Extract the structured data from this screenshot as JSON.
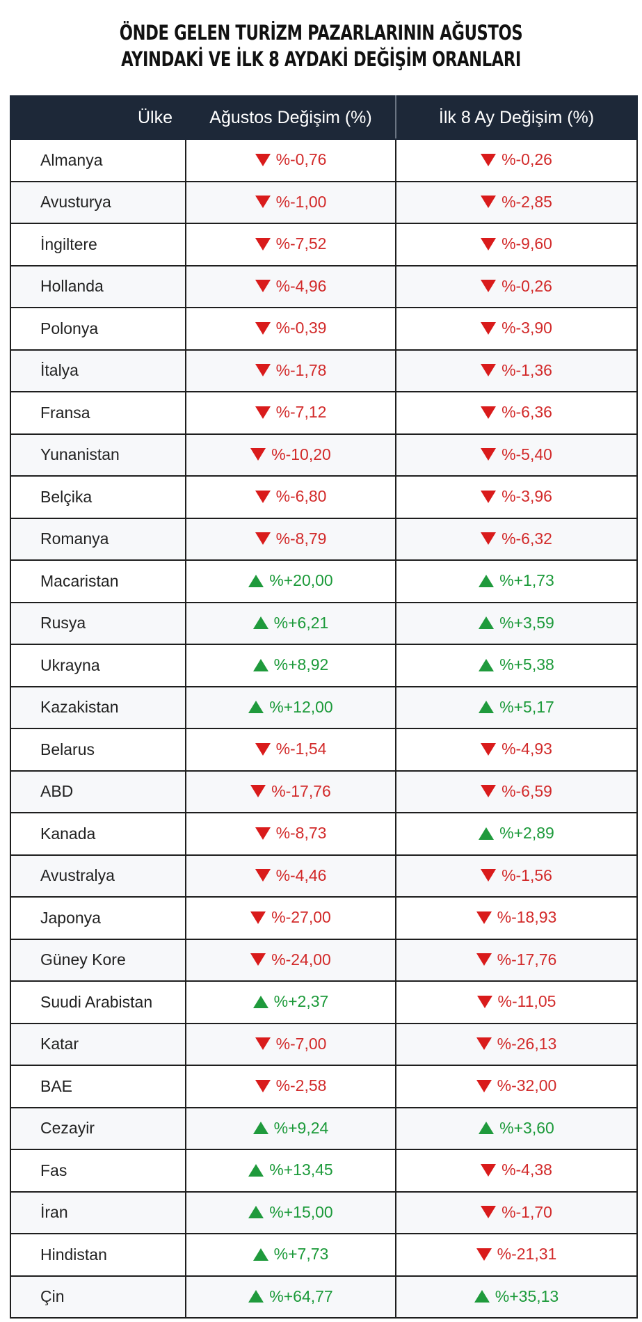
{
  "title": {
    "line1": "ÖNDE GELEN TURİZM PAZARLARININ AĞUSTOS",
    "line2": "AYINDAKİ VE İLK 8 AYDAKİ DEĞİŞİM ORANLARI"
  },
  "colors": {
    "header_bg": "#1d2838",
    "decrease": "#d91b1b",
    "increase": "#1f9a3c"
  },
  "icons": {
    "decrease": "triangle-down-icon",
    "increase": "triangle-up-icon"
  },
  "chart_data": {
    "type": "table",
    "title": "ÖNDE GELEN TURİZM PAZARLARININ AĞUSTOS AYINDAKİ VE İLK 8 AYDAKİ DEĞİŞİM ORANLARI",
    "columns": [
      "Ülke",
      "Ağustos Değişim (%)",
      "İlk 8 Ay Değişim (%)"
    ],
    "rows": [
      {
        "country": "Almanya",
        "aug": "%-0,76",
        "ytd": "%-0,26",
        "aug_value": -0.76,
        "ytd_value": -0.26
      },
      {
        "country": "Avusturya",
        "aug": "%-1,00",
        "ytd": "%-2,85",
        "aug_value": -1.0,
        "ytd_value": -2.85
      },
      {
        "country": "İngiltere",
        "aug": "%-7,52",
        "ytd": "%-9,60",
        "aug_value": -7.52,
        "ytd_value": -9.6
      },
      {
        "country": "Hollanda",
        "aug": "%-4,96",
        "ytd": "%-0,26",
        "aug_value": -4.96,
        "ytd_value": -0.26
      },
      {
        "country": "Polonya",
        "aug": "%-0,39",
        "ytd": "%-3,90",
        "aug_value": -0.39,
        "ytd_value": -3.9
      },
      {
        "country": "İtalya",
        "aug": "%-1,78",
        "ytd": "%-1,36",
        "aug_value": -1.78,
        "ytd_value": -1.36
      },
      {
        "country": "Fransa",
        "aug": "%-7,12",
        "ytd": "%-6,36",
        "aug_value": -7.12,
        "ytd_value": -6.36
      },
      {
        "country": "Yunanistan",
        "aug": "%-10,20",
        "ytd": "%-5,40",
        "aug_value": -10.2,
        "ytd_value": -5.4
      },
      {
        "country": "Belçika",
        "aug": "%-6,80",
        "ytd": "%-3,96",
        "aug_value": -6.8,
        "ytd_value": -3.96
      },
      {
        "country": "Romanya",
        "aug": "%-8,79",
        "ytd": "%-6,32",
        "aug_value": -8.79,
        "ytd_value": -6.32
      },
      {
        "country": "Macaristan",
        "aug": "%+20,00",
        "ytd": "%+1,73",
        "aug_value": 20.0,
        "ytd_value": 1.73
      },
      {
        "country": "Rusya",
        "aug": "%+6,21",
        "ytd": "%+3,59",
        "aug_value": 6.21,
        "ytd_value": 3.59
      },
      {
        "country": "Ukrayna",
        "aug": "%+8,92",
        "ytd": "%+5,38",
        "aug_value": 8.92,
        "ytd_value": 5.38
      },
      {
        "country": "Kazakistan",
        "aug": "%+12,00",
        "ytd": "%+5,17",
        "aug_value": 12.0,
        "ytd_value": 5.17
      },
      {
        "country": "Belarus",
        "aug": "%-1,54",
        "ytd": "%-4,93",
        "aug_value": -1.54,
        "ytd_value": -4.93
      },
      {
        "country": "ABD",
        "aug": "%-17,76",
        "ytd": "%-6,59",
        "aug_value": -17.76,
        "ytd_value": -6.59
      },
      {
        "country": "Kanada",
        "aug": "%-8,73",
        "ytd": "%+2,89",
        "aug_value": -8.73,
        "ytd_value": 2.89
      },
      {
        "country": "Avustralya",
        "aug": "%-4,46",
        "ytd": "%-1,56",
        "aug_value": -4.46,
        "ytd_value": -1.56
      },
      {
        "country": "Japonya",
        "aug": "%-27,00",
        "ytd": "%-18,93",
        "aug_value": -27.0,
        "ytd_value": -18.93
      },
      {
        "country": "Güney Kore",
        "aug": "%-24,00",
        "ytd": "%-17,76",
        "aug_value": -24.0,
        "ytd_value": -17.76
      },
      {
        "country": "Suudi Arabistan",
        "aug": "%+2,37",
        "ytd": "%-11,05",
        "aug_value": 2.37,
        "ytd_value": -11.05
      },
      {
        "country": "Katar",
        "aug": "%-7,00",
        "ytd": "%-26,13",
        "aug_value": -7.0,
        "ytd_value": -26.13
      },
      {
        "country": "BAE",
        "aug": "%-2,58",
        "ytd": "%-32,00",
        "aug_value": -2.58,
        "ytd_value": -32.0
      },
      {
        "country": "Cezayir",
        "aug": "%+9,24",
        "ytd": "%+3,60",
        "aug_value": 9.24,
        "ytd_value": 3.6
      },
      {
        "country": "Fas",
        "aug": "%+13,45",
        "ytd": "%-4,38",
        "aug_value": 13.45,
        "ytd_value": -4.38
      },
      {
        "country": "İran",
        "aug": "%+15,00",
        "ytd": "%-1,70",
        "aug_value": 15.0,
        "ytd_value": -1.7
      },
      {
        "country": "Hindistan",
        "aug": "%+7,73",
        "ytd": "%-21,31",
        "aug_value": 7.73,
        "ytd_value": -21.31
      },
      {
        "country": "Çin",
        "aug": "%+64,77",
        "ytd": "%+35,13",
        "aug_value": 64.77,
        "ytd_value": 35.13
      }
    ]
  }
}
